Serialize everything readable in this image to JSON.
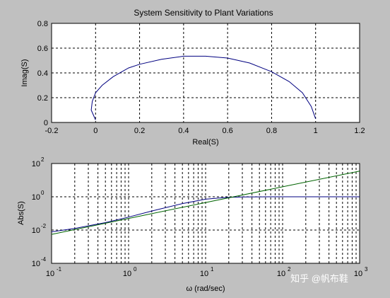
{
  "watermark": "知乎 @帆布鞋",
  "colors": {
    "background": "#c0c0c0",
    "axes_bg": "#ffffff",
    "series_blue": "#000080",
    "series_green": "#006400"
  },
  "chart_data": [
    {
      "type": "line",
      "title": "System Sensitivity to Plant Variations",
      "xlabel": "Real(S)",
      "ylabel": "Imag(S)",
      "xlim": [
        -0.2,
        1.2
      ],
      "ylim": [
        0,
        0.8
      ],
      "xticks": [
        "-0.2",
        "0",
        "0.2",
        "0.4",
        "0.6",
        "0.8",
        "1",
        "1.2"
      ],
      "yticks": [
        "0",
        "0.2",
        "0.4",
        "0.6",
        "0.8"
      ],
      "grid": true,
      "series": [
        {
          "color": "#000080",
          "x": [
            0.0,
            -0.02,
            -0.015,
            0.0,
            0.03,
            0.08,
            0.15,
            0.2,
            0.3,
            0.4,
            0.5,
            0.6,
            0.7,
            0.8,
            0.88,
            0.94,
            0.98,
            1.0
          ],
          "y": [
            0.02,
            0.1,
            0.17,
            0.24,
            0.3,
            0.37,
            0.44,
            0.47,
            0.51,
            0.535,
            0.535,
            0.52,
            0.48,
            0.41,
            0.33,
            0.24,
            0.13,
            0.03
          ]
        }
      ]
    },
    {
      "type": "line",
      "title": "",
      "xlabel": "ω (rad/sec)",
      "ylabel": "Abs(S)",
      "xscale": "log",
      "yscale": "log",
      "xlim": [
        0.1,
        1000
      ],
      "ylim": [
        0.0001,
        100
      ],
      "xticks": [
        {
          "base": "10",
          "exp": "-1"
        },
        {
          "base": "10",
          "exp": "0"
        },
        {
          "base": "10",
          "exp": "1"
        },
        {
          "base": "10",
          "exp": "2"
        },
        {
          "base": "10",
          "exp": "3"
        }
      ],
      "yticks": [
        {
          "base": "10",
          "exp": "-4"
        },
        {
          "base": "10",
          "exp": "-2"
        },
        {
          "base": "10",
          "exp": "0"
        },
        {
          "base": "10",
          "exp": "2"
        }
      ],
      "grid": true,
      "series": [
        {
          "color": "#000080",
          "x": [
            0.1,
            0.2,
            0.5,
            1,
            2,
            5,
            10,
            15,
            20,
            30,
            50,
            100,
            1000
          ],
          "y": [
            0.0078,
            0.0125,
            0.028,
            0.06,
            0.14,
            0.39,
            0.72,
            0.85,
            0.93,
            0.97,
            0.99,
            1.0,
            1.0
          ]
        },
        {
          "color": "#006400",
          "x": [
            0.1,
            1,
            10,
            100,
            1000
          ],
          "y": [
            0.0055,
            0.05,
            0.45,
            4.0,
            35.0
          ]
        }
      ]
    }
  ]
}
